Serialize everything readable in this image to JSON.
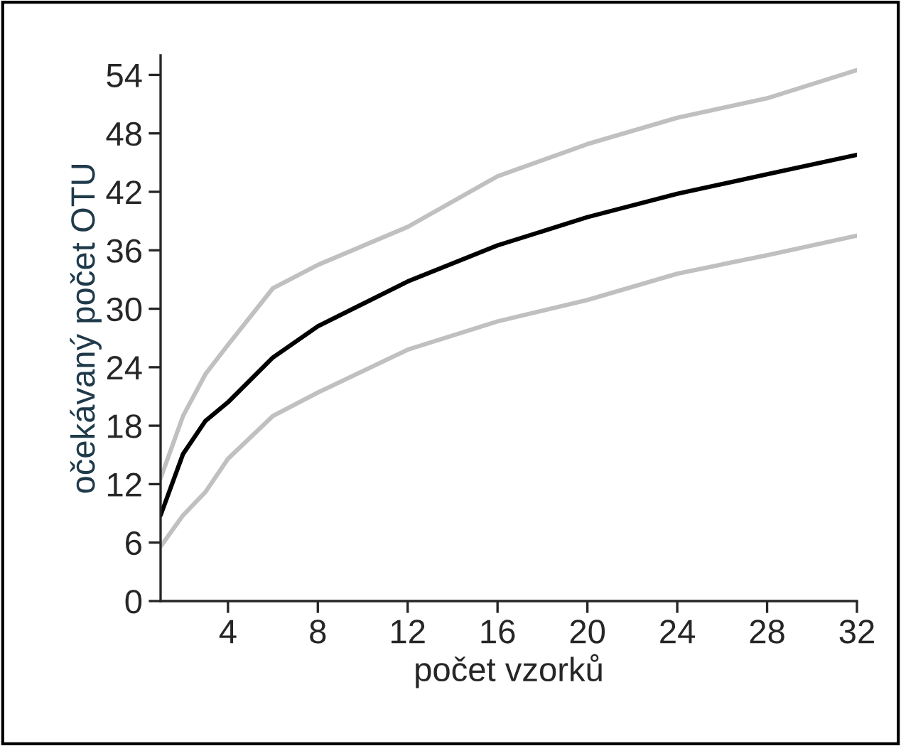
{
  "chart_data": {
    "type": "line",
    "xlabel": "počet vzorků",
    "ylabel": "očekávaný počet OTU",
    "xlim": [
      1,
      32
    ],
    "ylim": [
      0,
      56
    ],
    "xticks": [
      4,
      8,
      12,
      16,
      20,
      24,
      28,
      32
    ],
    "yticks": [
      0,
      6,
      12,
      18,
      24,
      30,
      36,
      42,
      48,
      54
    ],
    "grid": false,
    "marker": "none",
    "line_style": "solid",
    "series": [
      {
        "color": "#c0c0c0",
        "x": [
          1,
          2,
          3,
          4,
          6,
          8,
          12,
          16,
          20,
          24,
          28,
          32
        ],
        "values": [
          12.6,
          19,
          23.3,
          26.3,
          32.1,
          34.5,
          38.4,
          43.6,
          46.9,
          49.6,
          51.6,
          54.5
        ]
      },
      {
        "color": "#c0c0c0",
        "x": [
          1,
          2,
          3,
          4,
          6,
          8,
          12,
          16,
          20,
          24,
          28,
          32
        ],
        "values": [
          5.6,
          8.8,
          11.2,
          14.6,
          19,
          21.4,
          25.8,
          28.7,
          30.9,
          33.6,
          35.5,
          37.5
        ]
      },
      {
        "color": "#000000",
        "x": [
          1,
          2,
          3,
          4,
          6,
          8,
          12,
          16,
          20,
          24,
          28,
          32
        ],
        "values": [
          8.8,
          15.1,
          18.5,
          20.4,
          25,
          28.2,
          32.8,
          36.5,
          39.4,
          41.8,
          43.8,
          45.8
        ]
      }
    ]
  }
}
